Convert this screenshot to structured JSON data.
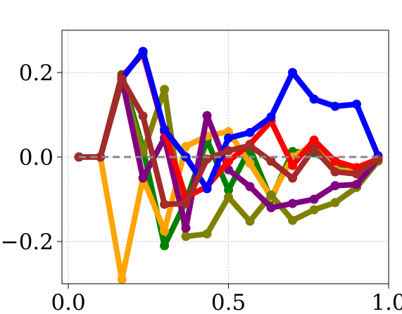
{
  "chart_data": {
    "type": "line",
    "title": "",
    "xlabel": "",
    "ylabel": "",
    "xlim": [
      -0.02,
      1.0
    ],
    "ylim": [
      -0.3,
      0.3
    ],
    "grid": true,
    "x_ticks": [
      0.0,
      0.5,
      1.0
    ],
    "x_tick_labels": [
      "0.0",
      "0.5",
      "1.0"
    ],
    "y_ticks": [
      -0.2,
      0.0,
      0.2
    ],
    "y_tick_labels": [
      "−0.2",
      "0.0",
      "0.2"
    ],
    "reference_line": {
      "y": 0.0,
      "color": "#888888",
      "style": "dashed"
    },
    "x": [
      0.033,
      0.1,
      0.167,
      0.233,
      0.3,
      0.367,
      0.433,
      0.5,
      0.567,
      0.633,
      0.7,
      0.767,
      0.833,
      0.9,
      0.967
    ],
    "series": [
      {
        "color": "#008000",
        "values": [
          0.0,
          0.0,
          0.195,
          0.02,
          -0.21,
          -0.105,
          0.04,
          -0.078,
          0.02,
          -0.1,
          0.013,
          0.01,
          -0.02,
          -0.03,
          -0.005
        ]
      },
      {
        "color": "#ffa500",
        "values": [
          0.0,
          0.0,
          -0.29,
          -0.05,
          -0.175,
          0.025,
          0.05,
          0.06,
          -0.015,
          -0.095,
          0.0,
          0.03,
          -0.03,
          -0.035,
          -0.005
        ]
      },
      {
        "color": "#808000",
        "values": [
          0.0,
          0.0,
          0.18,
          0.01,
          0.16,
          -0.188,
          -0.182,
          -0.095,
          -0.152,
          -0.09,
          -0.15,
          -0.125,
          -0.108,
          -0.072,
          -0.01
        ]
      },
      {
        "color": "#800080",
        "values": [
          0.0,
          0.0,
          0.185,
          -0.05,
          0.045,
          -0.168,
          0.098,
          -0.03,
          -0.07,
          -0.12,
          -0.11,
          -0.1,
          -0.068,
          -0.065,
          -0.005
        ]
      },
      {
        "color": "#ff0000",
        "values": [
          0.0,
          0.0,
          0.19,
          0.245,
          0.06,
          -0.095,
          -0.07,
          -0.01,
          0.03,
          0.085,
          -0.02,
          0.04,
          -0.01,
          -0.025,
          -0.005
        ]
      },
      {
        "color": "#0000ff",
        "values": [
          0.0,
          0.0,
          0.185,
          0.25,
          0.065,
          0.0,
          -0.075,
          0.045,
          0.058,
          0.095,
          0.2,
          0.137,
          0.12,
          0.125,
          0.003
        ]
      },
      {
        "color": "#a52a2a",
        "values": [
          0.0,
          0.0,
          0.185,
          0.097,
          -0.112,
          -0.11,
          -0.005,
          0.015,
          0.027,
          -0.01,
          -0.05,
          0.02,
          -0.035,
          -0.04,
          -0.005
        ]
      }
    ]
  }
}
